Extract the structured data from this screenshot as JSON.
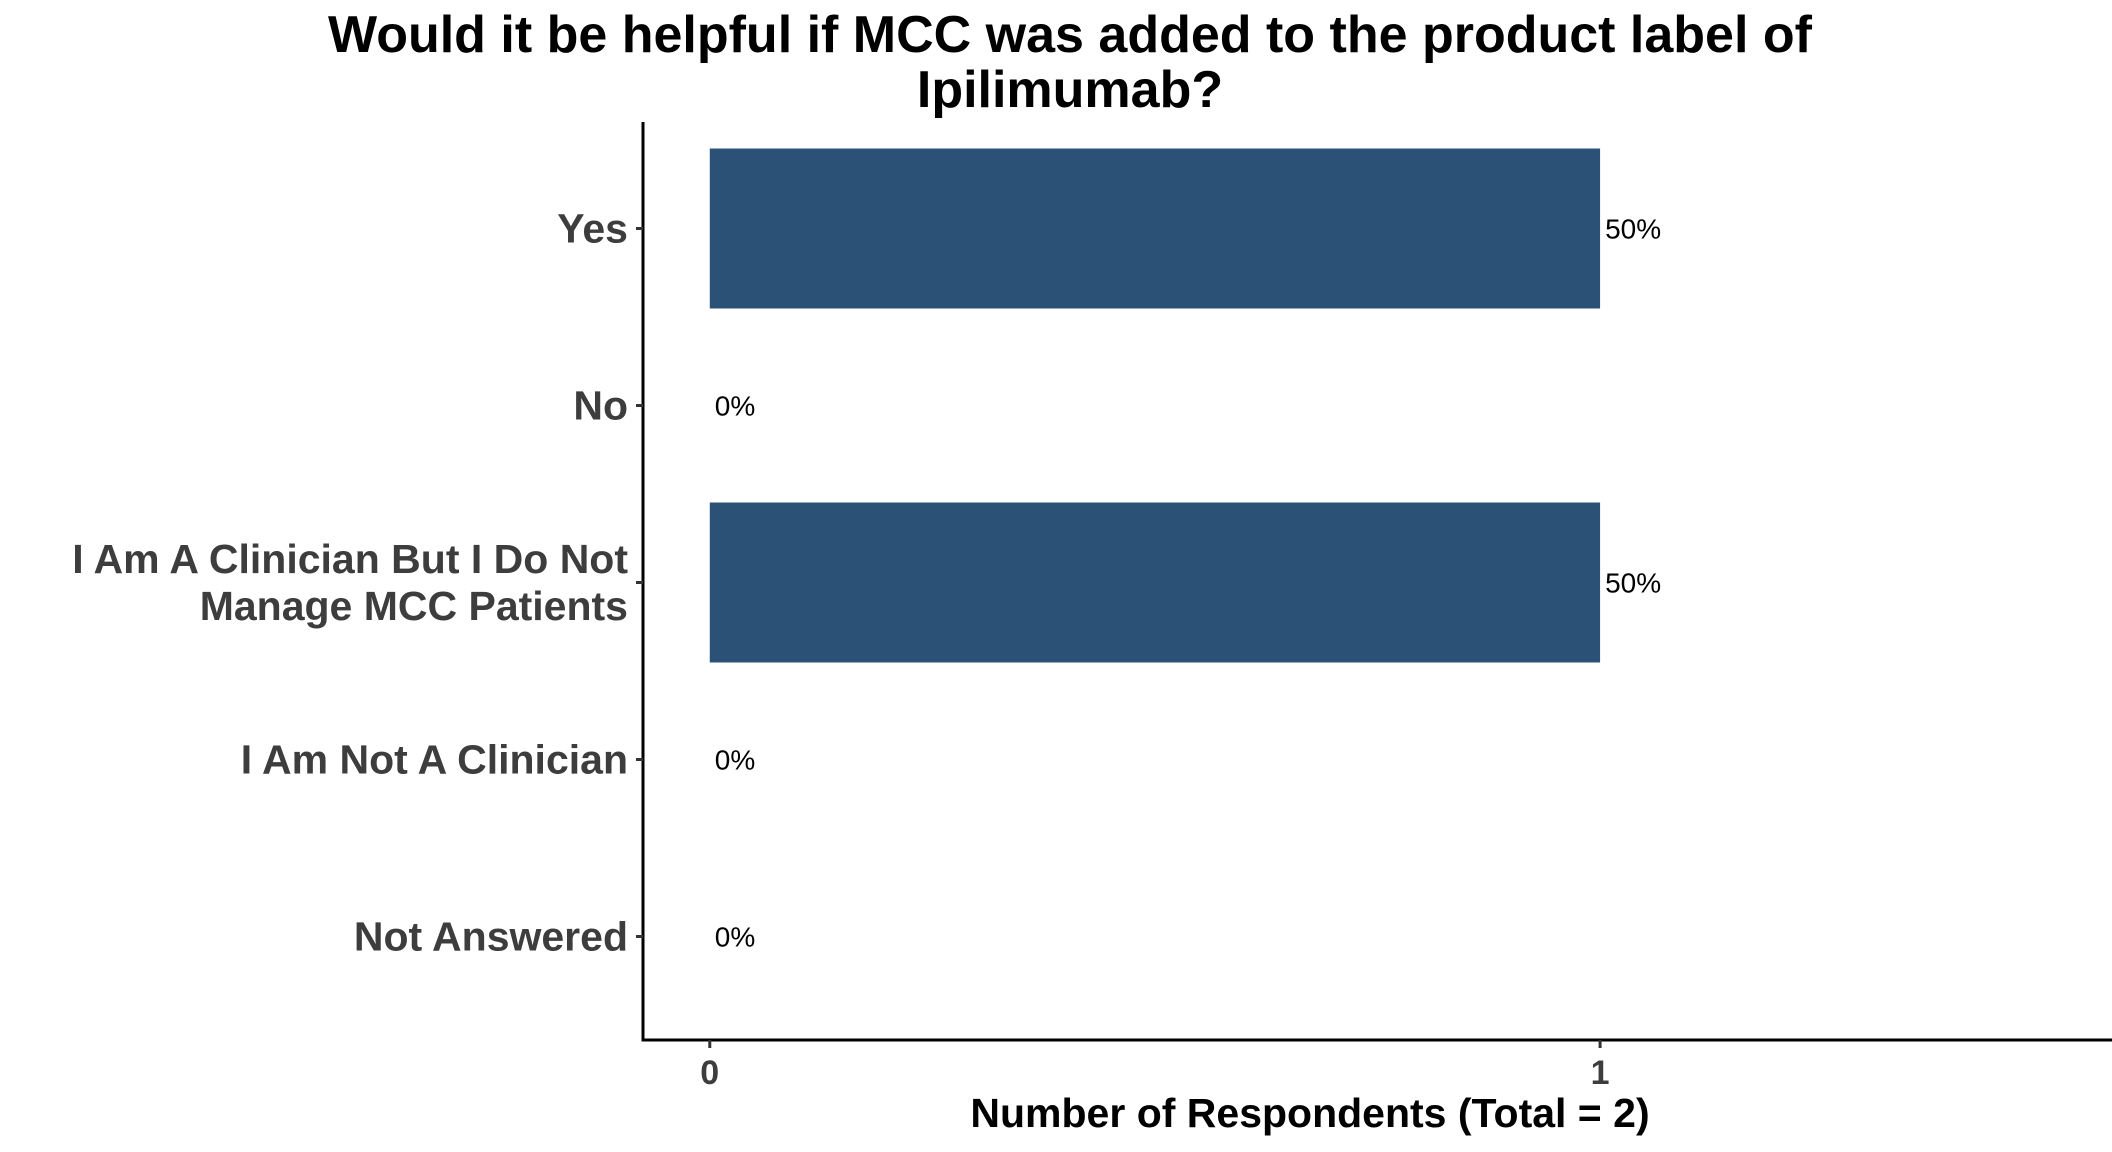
{
  "chart_data": {
    "type": "bar",
    "orientation": "horizontal",
    "title": "Would it be helpful if MCC was added to the product label of Ipilimumab?",
    "title_lines": [
      "Would it be helpful if MCC was added to the product label of",
      "Ipilimumab?"
    ],
    "xlabel": "Number of Respondents (Total = 2)",
    "ylabel": "",
    "categories": [
      "Yes",
      "No",
      "I Am A Clinician But I Do Not Manage MCC Patients",
      "I Am Not A Clinician",
      "Not Answered"
    ],
    "category_lines": [
      [
        "Yes"
      ],
      [
        "No"
      ],
      [
        "I Am A Clinician But I Do Not",
        "Manage MCC Patients"
      ],
      [
        "I Am Not A Clinician"
      ],
      [
        "Not Answered"
      ]
    ],
    "values": [
      1,
      0,
      1,
      0,
      0
    ],
    "data_labels": [
      "50%",
      "0%",
      "50%",
      "0%",
      "0%"
    ],
    "xlim": [
      -0.075,
      1.575
    ],
    "x_ticks": [
      0,
      1
    ],
    "x_tick_labels": [
      "0",
      "1"
    ],
    "grid": false,
    "bar_color": "#2c5177"
  }
}
